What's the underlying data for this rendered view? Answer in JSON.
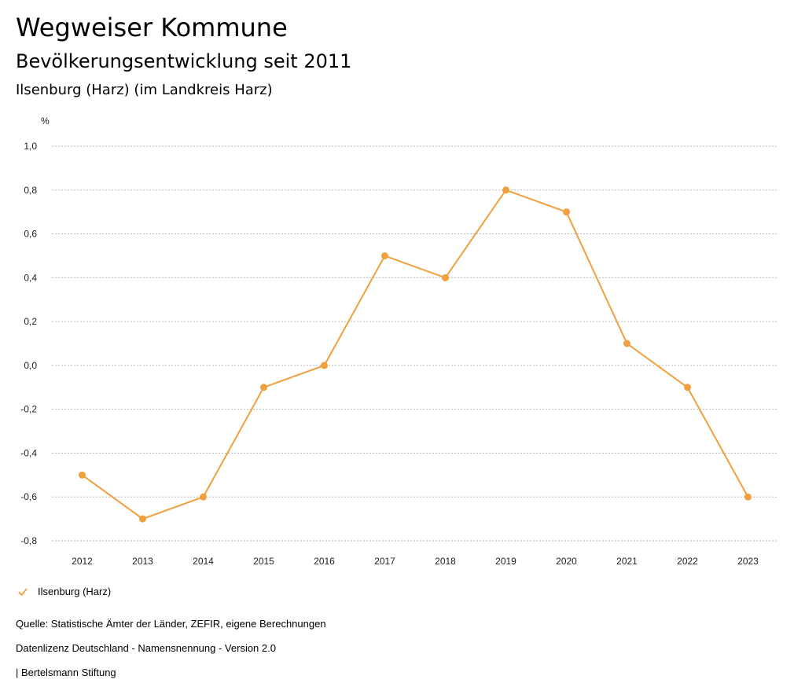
{
  "header": {
    "title": "Wegweiser Kommune",
    "subtitle": "Bevölkerungsentwicklung seit 2011",
    "place": "Ilsenburg (Harz) (im Landkreis Harz)"
  },
  "chart_data": {
    "type": "line",
    "ylabel": "%",
    "ylim": [
      -0.8,
      1.0
    ],
    "yticks": [
      1.0,
      0.8,
      0.6,
      0.4,
      0.2,
      0.0,
      -0.2,
      -0.4,
      -0.6,
      -0.8
    ],
    "ytick_labels": [
      "1,0",
      "0,8",
      "0,6",
      "0,4",
      "0,2",
      "0,0",
      "-0,2",
      "-0,4",
      "-0,6",
      "-0,8"
    ],
    "categories": [
      "2012",
      "2013",
      "2014",
      "2015",
      "2016",
      "2017",
      "2018",
      "2019",
      "2020",
      "2021",
      "2022",
      "2023"
    ],
    "series": [
      {
        "name": "Ilsenburg (Harz)",
        "values": [
          -0.5,
          -0.7,
          -0.6,
          -0.1,
          0.0,
          0.5,
          0.4,
          0.8,
          0.7,
          0.1,
          -0.1,
          -0.6
        ],
        "color": "#f0a03c"
      }
    ],
    "grid": true,
    "legend": "bottom-left"
  },
  "footer": {
    "source": "Quelle: Statistische Ämter der Länder, ZEFIR, eigene Berechnungen",
    "license": "Datenlizenz Deutschland - Namensnennung - Version 2.0",
    "publisher": "| Bertelsmann Stiftung"
  }
}
